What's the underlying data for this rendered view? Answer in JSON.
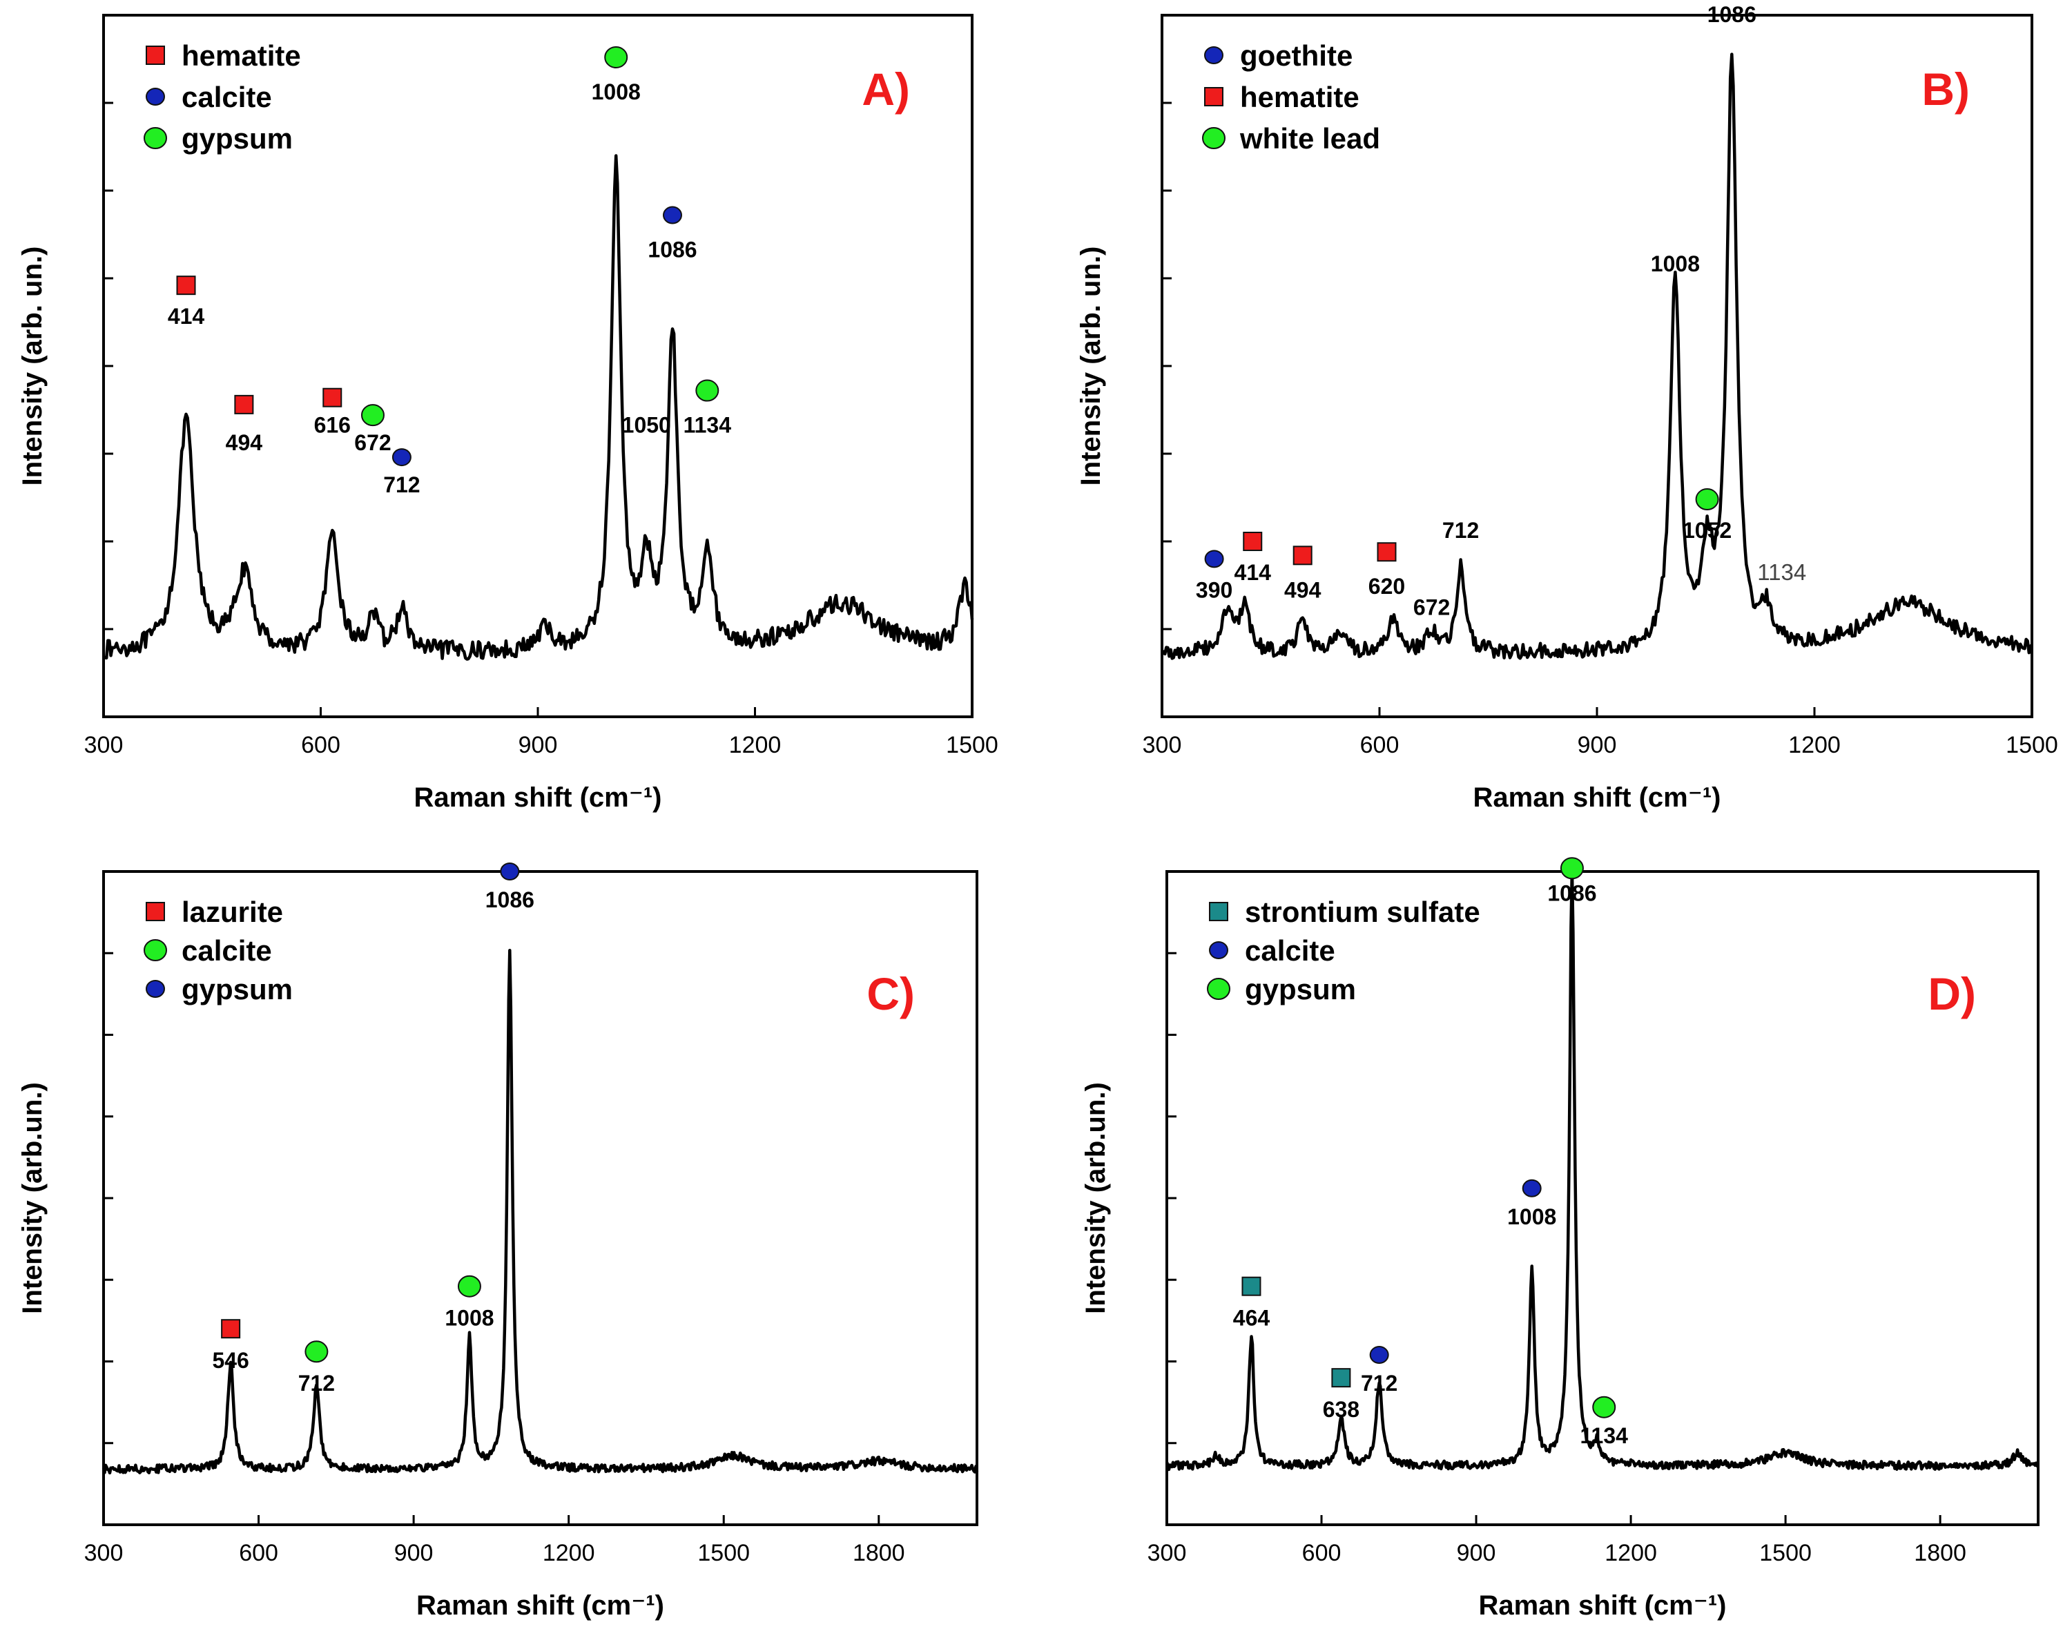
{
  "figure": {
    "panels": [
      "A)",
      "B)",
      "C)",
      "D)"
    ]
  },
  "marker_colors": {
    "red_square": "#ee1c1c",
    "blue_circle": "#1426b8",
    "green_circle": "#22ee22",
    "teal_square": "#1b8a8a"
  },
  "chart_data": [
    {
      "type": "line",
      "panel": "A)",
      "xlabel": "Raman shift (cm⁻¹)",
      "ylabel": "Intensity (arb. un.)",
      "xlim": [
        300,
        1500
      ],
      "xticks": [
        300,
        600,
        900,
        1200,
        1500
      ],
      "xtick_labels": [
        "300",
        "600",
        "900",
        "1200",
        "1500"
      ],
      "ylim": [
        0,
        1
      ],
      "ytick_count": 7,
      "baseline": 0.09,
      "noise": 0.013,
      "peaks": [
        [
          414,
          0.33,
          13
        ],
        [
          494,
          0.11,
          14
        ],
        [
          616,
          0.16,
          11
        ],
        [
          672,
          0.05,
          8
        ],
        [
          712,
          0.06,
          9
        ],
        [
          910,
          0.03,
          12
        ],
        [
          1008,
          0.69,
          8
        ],
        [
          1050,
          0.11,
          10
        ],
        [
          1086,
          0.45,
          8
        ],
        [
          1134,
          0.14,
          9
        ],
        [
          1320,
          0.07,
          60
        ],
        [
          1490,
          0.09,
          10
        ]
      ],
      "legend": [
        {
          "marker": "red_square",
          "label": "hematite"
        },
        {
          "marker": "blue_circle",
          "label": "calcite"
        },
        {
          "marker": "green_circle",
          "label": "gypsum"
        }
      ],
      "annotations": [
        {
          "text": "414",
          "x": 414,
          "y": 0.56,
          "marker": "red_square",
          "marker_y": 0.615,
          "plain": false
        },
        {
          "text": "494",
          "x": 494,
          "y": 0.38,
          "marker": "red_square",
          "marker_y": 0.445,
          "plain": false
        },
        {
          "text": "616",
          "x": 616,
          "y": 0.405,
          "marker": "red_square",
          "marker_y": 0.455,
          "plain": false
        },
        {
          "text": "672",
          "x": 672,
          "y": 0.38,
          "marker": "green_circle",
          "marker_y": 0.43,
          "plain": false
        },
        {
          "text": "712",
          "x": 712,
          "y": 0.32,
          "marker": "blue_circle",
          "marker_y": 0.37,
          "plain": false
        },
        {
          "text": "1008",
          "x": 1008,
          "y": 0.88,
          "marker": "green_circle",
          "marker_y": 0.94,
          "plain": false
        },
        {
          "text": "1050",
          "x": 1050,
          "y": 0.405,
          "marker": "",
          "marker_y": 0,
          "plain": false
        },
        {
          "text": "1086",
          "x": 1086,
          "y": 0.655,
          "marker": "blue_circle",
          "marker_y": 0.715,
          "plain": false
        },
        {
          "text": "1134",
          "x": 1134,
          "y": 0.405,
          "marker": "green_circle",
          "marker_y": 0.465,
          "plain": false
        }
      ]
    },
    {
      "type": "line",
      "panel": "B)",
      "xlabel": "Raman shift (cm⁻¹)",
      "ylabel": "Intensity (arb. un.)",
      "xlim": [
        300,
        1500
      ],
      "xticks": [
        300,
        600,
        900,
        1200,
        1500
      ],
      "xtick_labels": [
        "300",
        "600",
        "900",
        "1200",
        "1500"
      ],
      "ylim": [
        0,
        1
      ],
      "ytick_count": 7,
      "baseline": 0.09,
      "noise": 0.011,
      "peaks": [
        [
          390,
          0.06,
          10
        ],
        [
          414,
          0.06,
          8
        ],
        [
          494,
          0.05,
          8
        ],
        [
          545,
          0.03,
          8
        ],
        [
          620,
          0.05,
          8
        ],
        [
          672,
          0.03,
          8
        ],
        [
          712,
          0.12,
          7
        ],
        [
          1008,
          0.53,
          8
        ],
        [
          1052,
          0.12,
          10
        ],
        [
          1086,
          0.84,
          8
        ],
        [
          1134,
          0.05,
          8
        ],
        [
          1330,
          0.07,
          70
        ]
      ],
      "legend": [
        {
          "marker": "blue_circle",
          "label": "goethite"
        },
        {
          "marker": "red_square",
          "label": "hematite"
        },
        {
          "marker": "green_circle",
          "label": "white lead"
        }
      ],
      "annotations": [
        {
          "text": "390",
          "x": 372,
          "y": 0.17,
          "marker": "blue_circle",
          "marker_y": 0.225,
          "plain": false
        },
        {
          "text": "414",
          "x": 425,
          "y": 0.195,
          "marker": "red_square",
          "marker_y": 0.25,
          "plain": false
        },
        {
          "text": "494",
          "x": 494,
          "y": 0.17,
          "marker": "red_square",
          "marker_y": 0.23,
          "plain": false
        },
        {
          "text": "620",
          "x": 610,
          "y": 0.175,
          "marker": "red_square",
          "marker_y": 0.235,
          "plain": false
        },
        {
          "text": "672",
          "x": 672,
          "y": 0.145,
          "marker": "",
          "marker_y": 0,
          "plain": false
        },
        {
          "text": "712",
          "x": 712,
          "y": 0.255,
          "marker": "",
          "marker_y": 0,
          "plain": false
        },
        {
          "text": "1008",
          "x": 1008,
          "y": 0.635,
          "marker": "",
          "marker_y": 0,
          "plain": false
        },
        {
          "text": "1052",
          "x": 1052,
          "y": 0.255,
          "marker": "green_circle",
          "marker_y": 0.31,
          "plain": false
        },
        {
          "text": "1086",
          "x": 1086,
          "y": 0.99,
          "marker": "",
          "marker_y": 0,
          "plain": false
        },
        {
          "text": "1134",
          "x": 1155,
          "y": 0.195,
          "marker": "",
          "marker_y": 0,
          "plain": true
        }
      ]
    },
    {
      "type": "line",
      "panel": "C)",
      "xlabel": "Raman shift (cm⁻¹)",
      "ylabel": "Intensity (arb.un.)",
      "xlim": [
        300,
        1990
      ],
      "xticks": [
        300,
        600,
        900,
        1200,
        1500,
        1800
      ],
      "xtick_labels": [
        "300",
        "600",
        "900",
        "1200",
        "1500",
        "1800"
      ],
      "ylim": [
        0,
        1
      ],
      "ytick_count": 7,
      "baseline": 0.085,
      "noise": 0.006,
      "peaks": [
        [
          546,
          0.16,
          7
        ],
        [
          712,
          0.13,
          7
        ],
        [
          1008,
          0.2,
          6
        ],
        [
          1086,
          0.79,
          6
        ],
        [
          1520,
          0.02,
          40
        ],
        [
          1800,
          0.012,
          50
        ]
      ],
      "legend": [
        {
          "marker": "red_square",
          "label": "lazurite"
        },
        {
          "marker": "green_circle",
          "label": "calcite"
        },
        {
          "marker": "blue_circle",
          "label": "gypsum"
        }
      ],
      "annotations": [
        {
          "text": "546",
          "x": 546,
          "y": 0.24,
          "marker": "red_square",
          "marker_y": 0.3,
          "plain": false
        },
        {
          "text": "712",
          "x": 712,
          "y": 0.205,
          "marker": "green_circle",
          "marker_y": 0.265,
          "plain": false
        },
        {
          "text": "1008",
          "x": 1008,
          "y": 0.305,
          "marker": "green_circle",
          "marker_y": 0.365,
          "plain": false
        },
        {
          "text": "1086",
          "x": 1086,
          "y": 0.945,
          "marker": "blue_circle",
          "marker_y": 1.0,
          "plain": false
        }
      ]
    },
    {
      "type": "line",
      "panel": "D)",
      "xlabel": "Raman shift (cm⁻¹)",
      "ylabel": "Intensity (arb.un.)",
      "xlim": [
        300,
        1990
      ],
      "xticks": [
        300,
        600,
        900,
        1200,
        1500,
        1800
      ],
      "xtick_labels": [
        "300",
        "600",
        "900",
        "1200",
        "1500",
        "1800"
      ],
      "ylim": [
        0,
        1
      ],
      "ytick_count": 7,
      "baseline": 0.09,
      "noise": 0.006,
      "peaks": [
        [
          395,
          0.015,
          8
        ],
        [
          464,
          0.2,
          6
        ],
        [
          638,
          0.07,
          8
        ],
        [
          712,
          0.13,
          7
        ],
        [
          1008,
          0.3,
          6
        ],
        [
          1086,
          0.91,
          6
        ],
        [
          1134,
          0.03,
          6
        ],
        [
          1500,
          0.02,
          40
        ],
        [
          1950,
          0.02,
          10
        ]
      ],
      "legend": [
        {
          "marker": "teal_square",
          "label": "strontium sulfate"
        },
        {
          "marker": "blue_circle",
          "label": "calcite"
        },
        {
          "marker": "green_circle",
          "label": "gypsum"
        }
      ],
      "annotations": [
        {
          "text": "464",
          "x": 464,
          "y": 0.305,
          "marker": "teal_square",
          "marker_y": 0.365,
          "plain": false
        },
        {
          "text": "638",
          "x": 638,
          "y": 0.165,
          "marker": "teal_square",
          "marker_y": 0.225,
          "plain": false
        },
        {
          "text": "712",
          "x": 712,
          "y": 0.205,
          "marker": "blue_circle",
          "marker_y": 0.26,
          "plain": false
        },
        {
          "text": "1008",
          "x": 1008,
          "y": 0.46,
          "marker": "blue_circle",
          "marker_y": 0.515,
          "plain": false
        },
        {
          "text": "1086",
          "x": 1086,
          "y": 0.955,
          "marker": "green_circle",
          "marker_y": 1.005,
          "plain": false
        },
        {
          "text": "1134",
          "x": 1148,
          "y": 0.125,
          "marker": "green_circle",
          "marker_y": 0.18,
          "plain": false
        }
      ]
    }
  ]
}
